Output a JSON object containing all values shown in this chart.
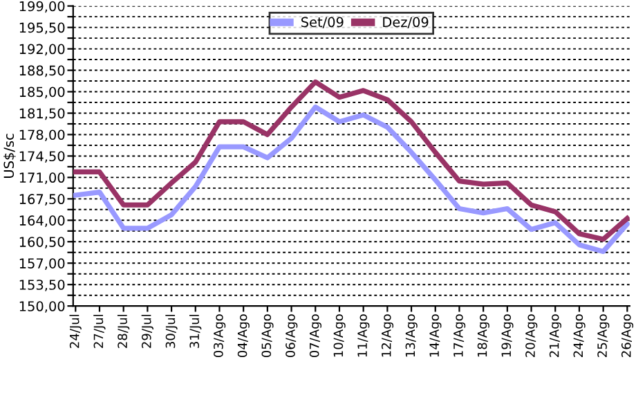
{
  "chart_data": {
    "type": "line",
    "ylabel": "US$/sc",
    "categories": [
      "24/Jul",
      "27/Jul",
      "28/Jul",
      "29/Jul",
      "30/Jul",
      "31/Jul",
      "03/Ago",
      "04/Ago",
      "05/Ago",
      "06/Ago",
      "07/Ago",
      "10/Ago",
      "11/Ago",
      "12/Ago",
      "13/Ago",
      "14/Ago",
      "17/Ago",
      "18/Ago",
      "19/Ago",
      "20/Ago",
      "21/Ago",
      "24/Ago",
      "25/Ago",
      "26/Ago"
    ],
    "series": [
      {
        "name": "Set/09",
        "color": "#9999ff",
        "values": [
          168.1,
          168.6,
          162.7,
          162.7,
          164.9,
          169.5,
          176.0,
          176.0,
          174.2,
          177.4,
          182.5,
          180.1,
          181.2,
          179.2,
          175.1,
          170.6,
          165.9,
          165.2,
          165.9,
          162.5,
          163.6,
          160.0,
          158.9,
          163.4
        ]
      },
      {
        "name": "Dez/09",
        "color": "#993366",
        "values": [
          171.9,
          171.9,
          166.5,
          166.5,
          170.1,
          173.5,
          180.1,
          180.1,
          178.0,
          182.5,
          186.6,
          184.1,
          185.2,
          183.7,
          180.1,
          175.1,
          170.4,
          169.9,
          170.1,
          166.5,
          165.4,
          161.8,
          160.9,
          164.3
        ]
      }
    ],
    "ylim": [
      150,
      199
    ],
    "yticks": [
      {
        "value": 150,
        "label": "150,00"
      },
      {
        "value": 151.75,
        "label": null
      },
      {
        "value": 153.5,
        "label": "153,50"
      },
      {
        "value": 155.25,
        "label": null
      },
      {
        "value": 157,
        "label": "157,00"
      },
      {
        "value": 158.75,
        "label": null
      },
      {
        "value": 160.5,
        "label": "160,50"
      },
      {
        "value": 162.25,
        "label": null
      },
      {
        "value": 164,
        "label": "164,00"
      },
      {
        "value": 165.75,
        "label": null
      },
      {
        "value": 167.5,
        "label": "167,50"
      },
      {
        "value": 169.25,
        "label": null
      },
      {
        "value": 171,
        "label": "171,00"
      },
      {
        "value": 172.75,
        "label": null
      },
      {
        "value": 174.5,
        "label": "174,50"
      },
      {
        "value": 176.25,
        "label": null
      },
      {
        "value": 178,
        "label": "178,00"
      },
      {
        "value": 179.75,
        "label": null
      },
      {
        "value": 181.5,
        "label": "181,50"
      },
      {
        "value": 183.25,
        "label": null
      },
      {
        "value": 185,
        "label": "185,00"
      },
      {
        "value": 186.75,
        "label": null
      },
      {
        "value": 188.5,
        "label": "188,50"
      },
      {
        "value": 190.25,
        "label": null
      },
      {
        "value": 192,
        "label": "192,00"
      },
      {
        "value": 193.75,
        "label": null
      },
      {
        "value": 195.5,
        "label": "195,50"
      },
      {
        "value": 197.25,
        "label": null
      },
      {
        "value": 199,
        "label": "199,00"
      }
    ],
    "grid": "y",
    "legend": "top",
    "marker": "none",
    "line_style": "solid"
  }
}
